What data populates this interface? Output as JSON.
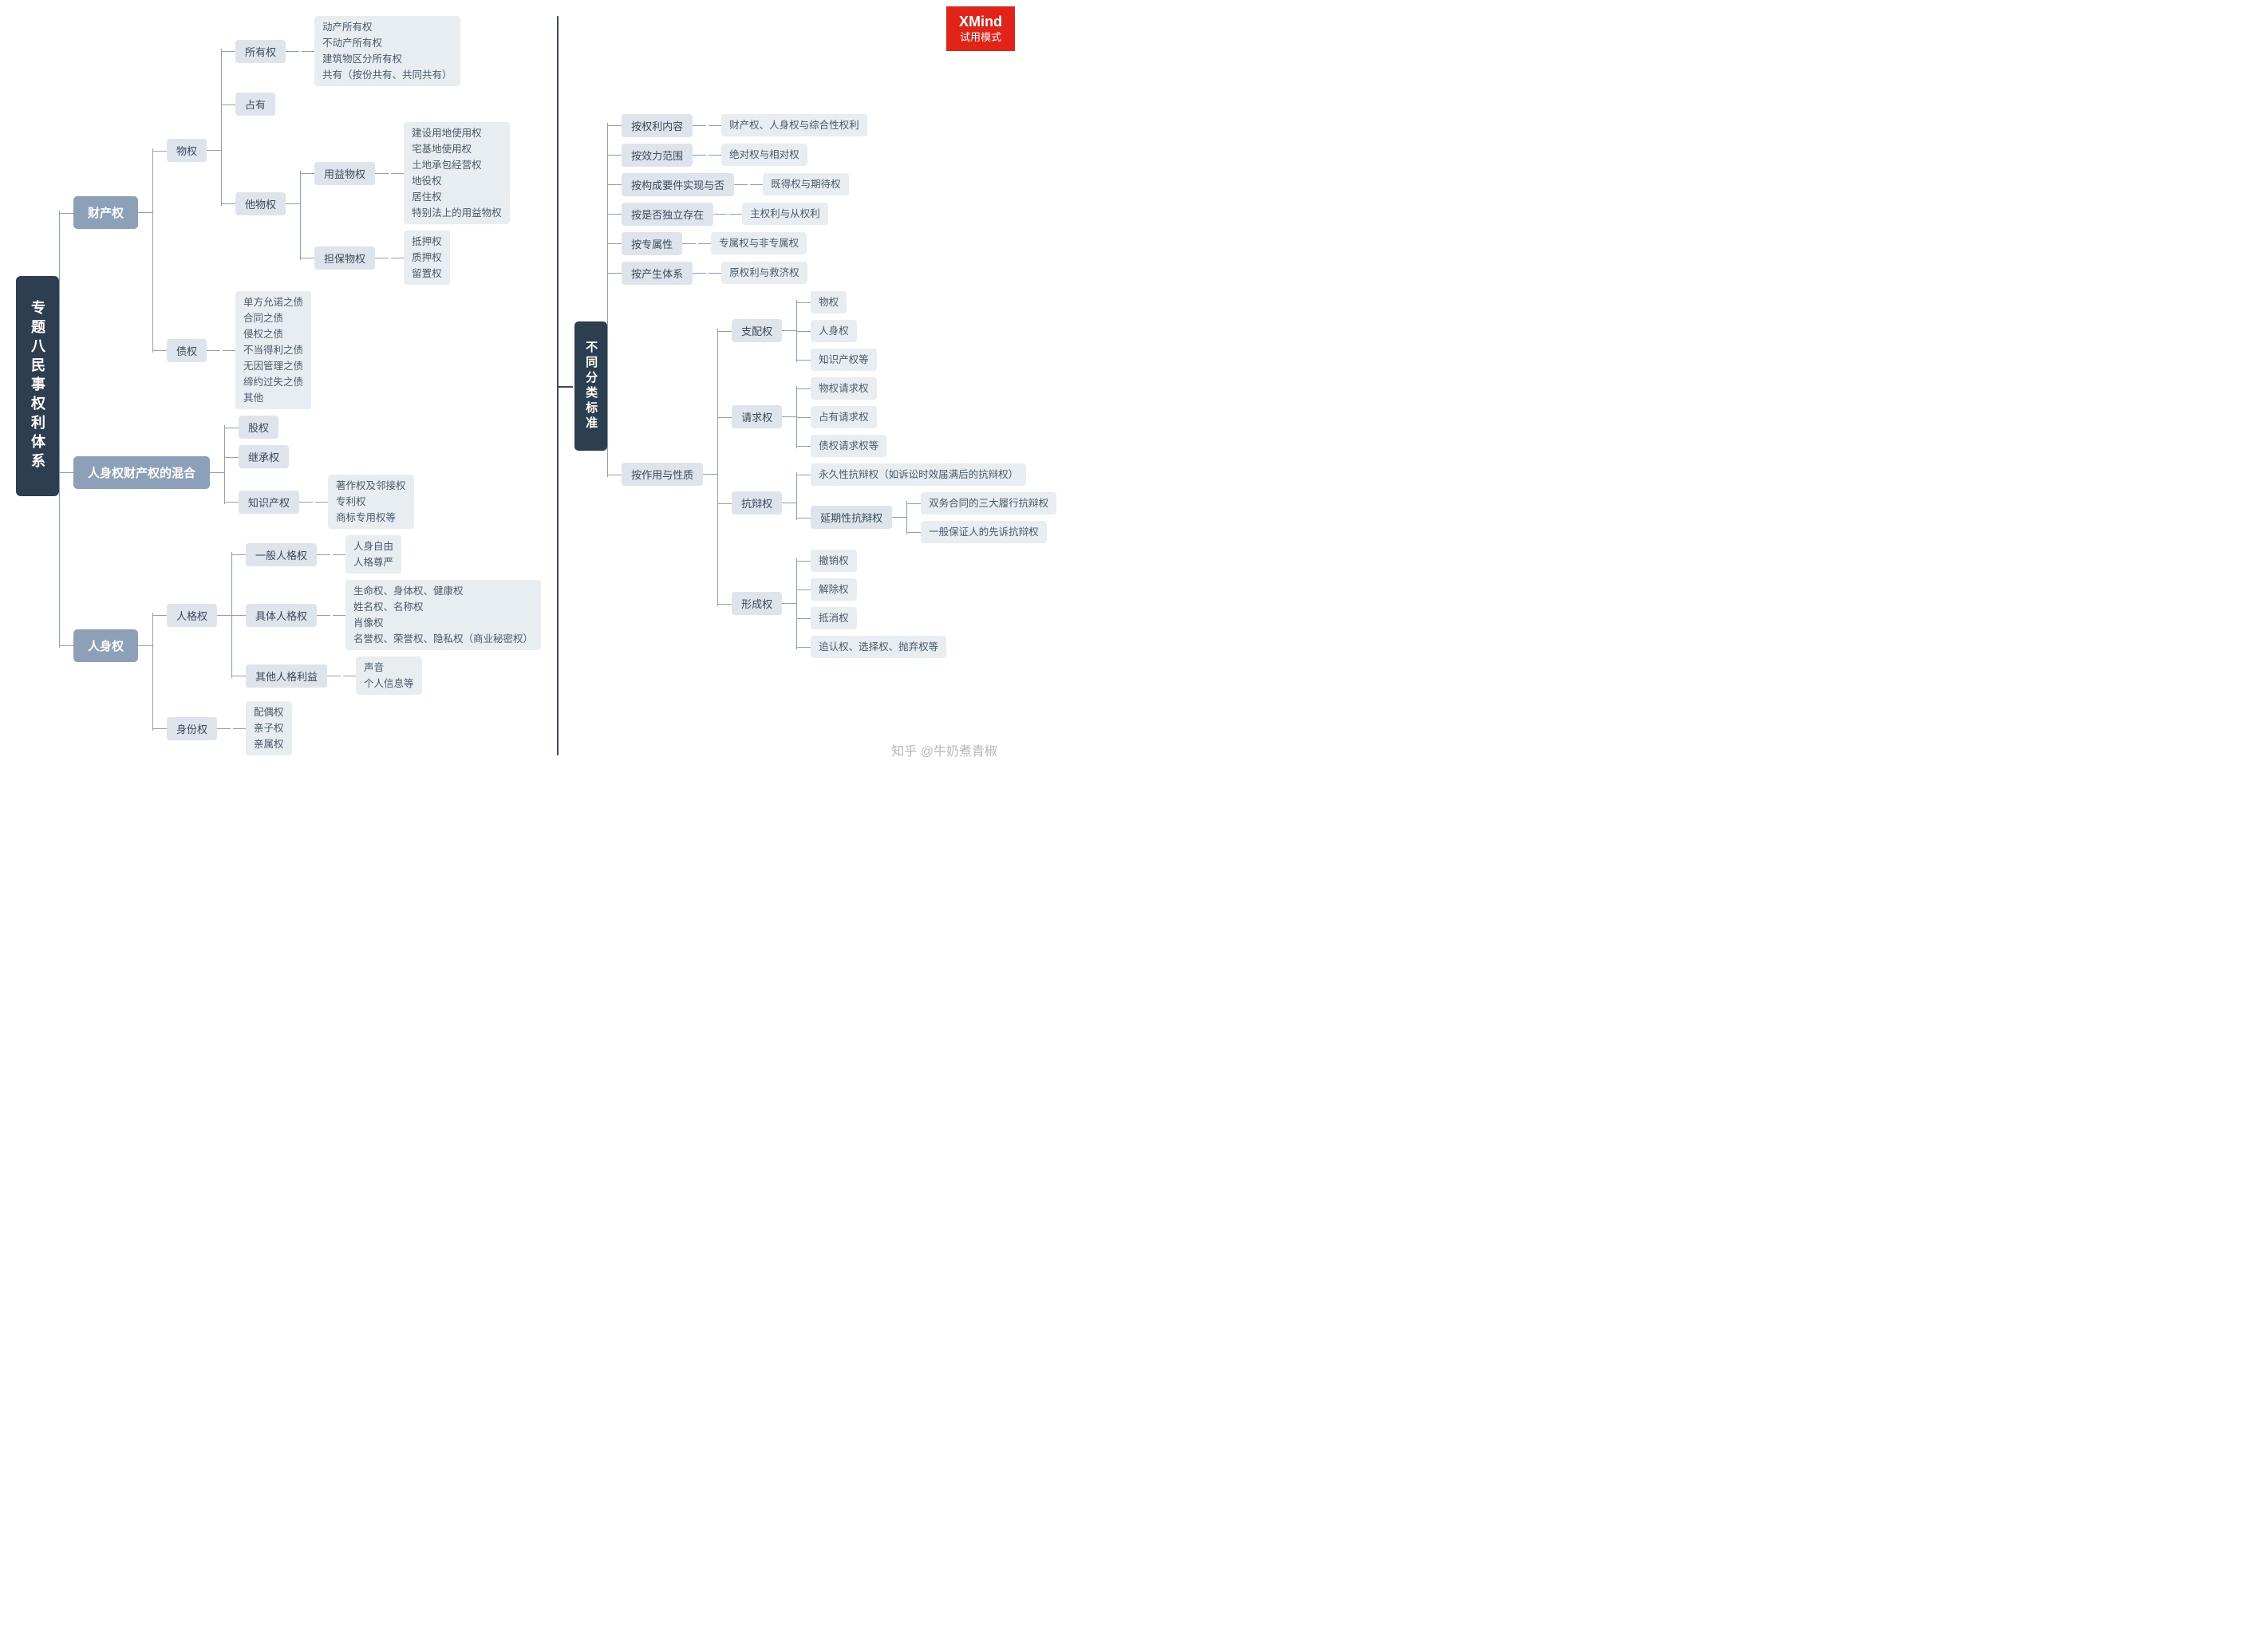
{
  "badge": {
    "line1": "XMind",
    "line2": "试用模式"
  },
  "watermark": "知乎 @牛奶煮青椒",
  "root": "专题八民事权利体系",
  "right_root": "不同分类标准",
  "caichan": {
    "label": "财产权",
    "wuquan": {
      "label": "物权",
      "suoyou": {
        "label": "所有权",
        "leaves": "动产所有权\n不动产所有权\n建筑物区分所有权\n共有（按份共有、共同共有）"
      },
      "zhanyou": {
        "label": "占有"
      },
      "tawu": {
        "label": "他物权",
        "yongyi": {
          "label": "用益物权",
          "leaves": "建设用地使用权\n宅基地使用权\n土地承包经营权\n地役权\n居住权\n特别法上的用益物权"
        },
        "danbao": {
          "label": "担保物权",
          "leaves": "抵押权\n质押权\n留置权"
        }
      }
    },
    "zhaiquan": {
      "label": "债权",
      "leaves": "单方允诺之债\n合同之债\n侵权之债\n不当得利之债\n无因管理之债\n缔约过失之债\n其他"
    }
  },
  "hunhe": {
    "label": "人身权财产权的混合",
    "guquan": {
      "label": "股权"
    },
    "jicheng": {
      "label": "继承权"
    },
    "zhishi": {
      "label": "知识产权",
      "leaves": "著作权及邻接权\n专利权\n商标专用权等"
    }
  },
  "renshen": {
    "label": "人身权",
    "renge": {
      "label": "人格权",
      "yiban": {
        "label": "一般人格权",
        "leaves": "人身自由\n人格尊严"
      },
      "juti": {
        "label": "具体人格权",
        "leaves": "生命权、身体权、健康权\n姓名权、名称权\n肖像权\n名誉权、荣誉权、隐私权（商业秘密权）"
      },
      "qita": {
        "label": "其他人格利益",
        "leaves": "声音\n个人信息等"
      }
    },
    "shenfen": {
      "label": "身份权",
      "leaves": "配偶权\n亲子权\n亲属权"
    }
  },
  "right": {
    "r1": {
      "label": "按权利内容",
      "leaf": "财产权、人身权与综合性权利"
    },
    "r2": {
      "label": "按效力范围",
      "leaf": "绝对权与相对权"
    },
    "r3": {
      "label": "按构成要件实现与否",
      "leaf": "既得权与期待权"
    },
    "r4": {
      "label": "按是否独立存在",
      "leaf": "主权利与从权利"
    },
    "r5": {
      "label": "按专属性",
      "leaf": "专属权与非专属权"
    },
    "r6": {
      "label": "按产生体系",
      "leaf": "原权利与救济权"
    },
    "r7": {
      "label": "按作用与性质",
      "zhipei": {
        "label": "支配权",
        "items": [
          "物权",
          "人身权",
          "知识产权等"
        ]
      },
      "qingqiu": {
        "label": "请求权",
        "items": [
          "物权请求权",
          "占有请求权",
          "债权请求权等"
        ]
      },
      "kangbian": {
        "label": "抗辩权",
        "yongjiu": "永久性抗辩权（如诉讼时效届满后的抗辩权）",
        "yanqi": {
          "label": "延期性抗辩权",
          "items": [
            "双务合同的三大履行抗辩权",
            "一般保证人的先诉抗辩权"
          ]
        }
      },
      "xingcheng": {
        "label": "形成权",
        "items": [
          "撤销权",
          "解除权",
          "抵消权"
        ],
        "note": "追认权、选择权、抛弃权等"
      }
    }
  }
}
